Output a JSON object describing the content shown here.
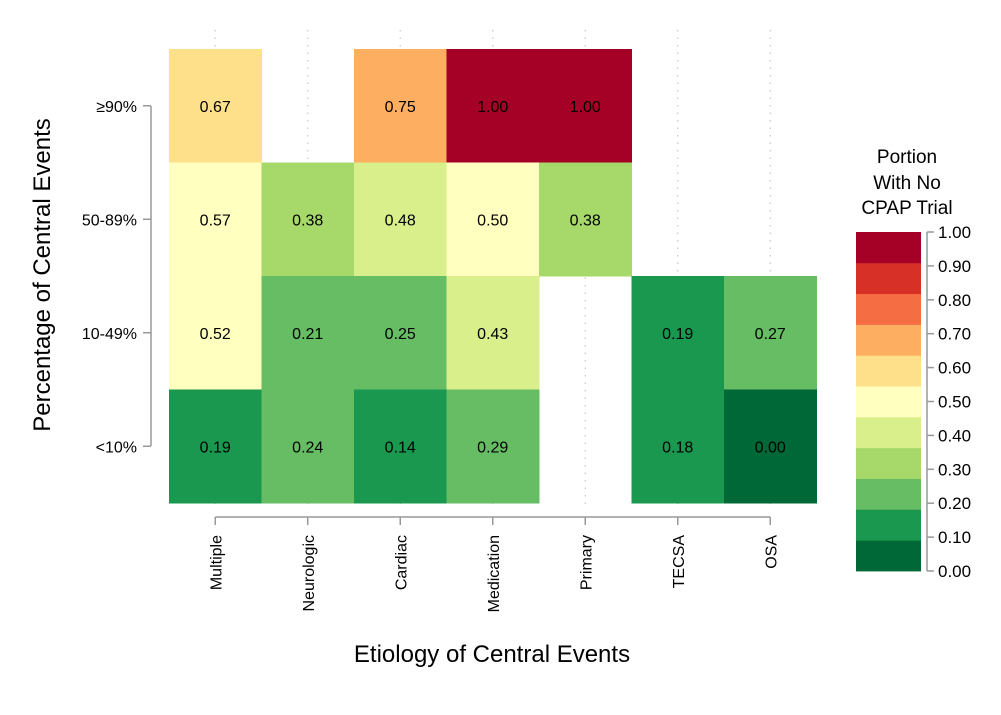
{
  "chart_data": {
    "type": "heatmap",
    "xlabel": "Etiology of Central Events",
    "ylabel": "Percentage of Central Events",
    "x_categories": [
      "Multiple",
      "Neurologic",
      "Cardiac",
      "Medication",
      "Primary",
      "TECSA",
      "OSA"
    ],
    "y_categories": [
      "≥90%",
      "50-89%",
      "10-49%",
      "<10%"
    ],
    "values": [
      [
        0.67,
        null,
        0.75,
        1.0,
        1.0,
        null,
        null
      ],
      [
        0.57,
        0.38,
        0.48,
        0.5,
        0.38,
        null,
        null
      ],
      [
        0.52,
        0.21,
        0.25,
        0.43,
        null,
        0.19,
        0.27
      ],
      [
        0.19,
        0.24,
        0.14,
        0.29,
        null,
        0.18,
        0.0
      ]
    ],
    "value_labels": [
      [
        "0.67",
        "",
        "0.75",
        "1.00",
        "1.00",
        "",
        ""
      ],
      [
        "0.57",
        "0.38",
        "0.48",
        "0.50",
        "0.38",
        "",
        ""
      ],
      [
        "0.52",
        "0.21",
        "0.25",
        "0.43",
        "",
        "0.19",
        "0.27"
      ],
      [
        "0.19",
        "0.24",
        "0.14",
        "0.29",
        "",
        "0.18",
        "0.00"
      ]
    ],
    "legend": {
      "title_lines": [
        "Portion",
        "With No",
        "CPAP Trial"
      ],
      "ticks": [
        "1.00",
        "0.90",
        "0.80",
        "0.70",
        "0.60",
        "0.50",
        "0.40",
        "0.30",
        "0.20",
        "0.10",
        "0.00"
      ],
      "placement": "right",
      "range": [
        0,
        1
      ]
    },
    "color_bins": [
      "#006837",
      "#1a9850",
      "#66bd63",
      "#a6d96a",
      "#d9ef8b",
      "#ffffbf",
      "#fee08b",
      "#fdae61",
      "#f46d43",
      "#d73027",
      "#a50026"
    ],
    "grid": "dotted vertical"
  }
}
